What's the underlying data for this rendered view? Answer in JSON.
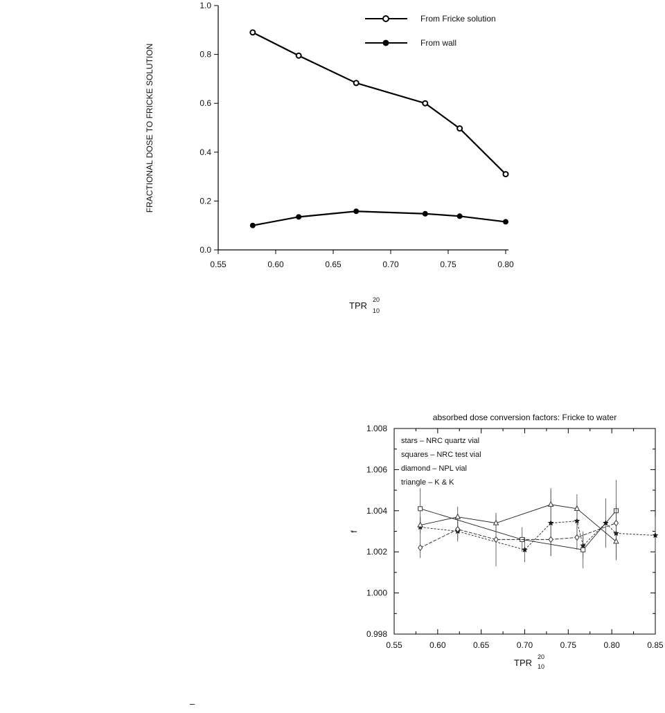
{
  "chart_data": [
    {
      "type": "line",
      "title": "",
      "ylabel": "FRACTIONAL DOSE TO FRICKE SOLUTION",
      "xlabel": {
        "main": "TPR",
        "sup": "20",
        "sub": "10"
      },
      "xlim": [
        0.55,
        0.8
      ],
      "ylim": [
        0.0,
        1.0
      ],
      "x_ticks": [
        "0.55",
        "0.60",
        "0.65",
        "0.70",
        "0.75",
        "0.80"
      ],
      "y_ticks": [
        "0.0",
        "0.2",
        "0.4",
        "0.6",
        "0.8",
        "1.0"
      ],
      "grid": false,
      "legend_position": "top-right",
      "x": [
        0.58,
        0.62,
        0.67,
        0.73,
        0.76,
        0.8
      ],
      "series": [
        {
          "name": "From Fricke solution",
          "marker": "open-circle",
          "values": [
            0.89,
            0.795,
            0.683,
            0.6,
            0.497,
            0.31
          ]
        },
        {
          "name": "From wall",
          "marker": "filled-circle",
          "values": [
            0.1,
            0.135,
            0.158,
            0.148,
            0.138,
            0.115
          ]
        }
      ]
    },
    {
      "type": "line",
      "title": "absorbed dose conversion factors: Fricke to water",
      "ylabel": "f",
      "xlabel": {
        "main": "TPR",
        "sup": "20",
        "sub": "10"
      },
      "xlim": [
        0.55,
        0.85
      ],
      "ylim": [
        0.998,
        1.008
      ],
      "x_ticks": [
        "0.55",
        "0.60",
        "0.65",
        "0.70",
        "0.75",
        "0.80",
        "0.85"
      ],
      "y_ticks": [
        "0.998",
        "1.000",
        "1.002",
        "1.004",
        "1.006",
        "1.008"
      ],
      "grid": false,
      "legend_position": "top-left",
      "series": [
        {
          "name": "stars – NRC quartz vial",
          "marker": "star",
          "dash": "3,2",
          "x": [
            0.58,
            0.623,
            0.7,
            0.73,
            0.76,
            0.767,
            0.793,
            0.805,
            0.85
          ],
          "values": [
            1.0032,
            1.003,
            1.0021,
            1.0034,
            1.0035,
            1.0023,
            1.0034,
            1.0029,
            1.0028
          ],
          "err": [
            0.0005,
            0.0005,
            0.0006,
            0.0016,
            0.0006,
            0.0006,
            0.0012,
            0.0013,
            0.0009
          ]
        },
        {
          "name": "squares – NRC test vial",
          "marker": "square",
          "dash": "",
          "x": [
            0.58,
            0.697,
            0.767,
            0.805
          ],
          "values": [
            1.0041,
            1.0026,
            1.0021,
            1.004
          ],
          "err": [
            0.001,
            0.0006,
            0.0009,
            0.0015
          ]
        },
        {
          "name": "diamond – NPL vial",
          "marker": "diamond",
          "dash": "5,2",
          "x": [
            0.58,
            0.623,
            0.667,
            0.73,
            0.76,
            0.805
          ],
          "values": [
            1.0022,
            1.0031,
            1.0026,
            1.0026,
            1.0027,
            1.0034
          ],
          "err": [
            0.0005,
            0.0005,
            0.0013,
            0.0008,
            0.0006,
            0.0009
          ]
        },
        {
          "name": "triangle – K & K",
          "marker": "triangle",
          "dash": "",
          "x": [
            0.58,
            0.623,
            0.667,
            0.73,
            0.76,
            0.805
          ],
          "values": [
            1.0033,
            1.0037,
            1.0034,
            1.0043,
            1.0041,
            1.0025
          ],
          "err": [
            0.0004,
            0.0005,
            0.0004,
            0.0008,
            0.0007,
            0.0008
          ]
        }
      ]
    }
  ],
  "page": {
    "footer_mark": "–"
  }
}
